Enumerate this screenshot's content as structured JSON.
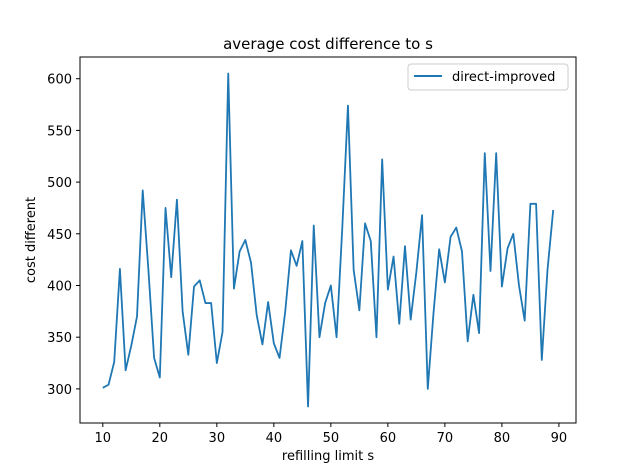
{
  "chart_data": {
    "type": "line",
    "title": "average cost difference to s",
    "xlabel": "refilling limit s",
    "ylabel": "cost different",
    "xlim": [
      6,
      93
    ],
    "ylim": [
      267,
      621
    ],
    "xticks": [
      10,
      20,
      30,
      40,
      50,
      60,
      70,
      80,
      90
    ],
    "yticks": [
      300,
      350,
      400,
      450,
      500,
      550,
      600
    ],
    "grid": false,
    "legend": "top-right",
    "series": [
      {
        "name": "direct-improved",
        "color": "#1f77b4",
        "x": [
          10,
          11,
          12,
          13,
          14,
          15,
          16,
          17,
          18,
          19,
          20,
          21,
          22,
          23,
          24,
          25,
          26,
          27,
          28,
          29,
          30,
          31,
          32,
          33,
          34,
          35,
          36,
          37,
          38,
          39,
          40,
          41,
          42,
          43,
          44,
          45,
          46,
          47,
          48,
          49,
          50,
          51,
          52,
          53,
          54,
          55,
          56,
          57,
          58,
          59,
          60,
          61,
          62,
          63,
          64,
          65,
          66,
          67,
          68,
          69,
          70,
          71,
          72,
          73,
          74,
          75,
          76,
          77,
          78,
          79,
          80,
          81,
          82,
          83,
          84,
          85,
          86,
          87,
          88,
          89
        ],
        "values": [
          301,
          304,
          326,
          416,
          318,
          342,
          370,
          492,
          415,
          330,
          311,
          475,
          408,
          483,
          375,
          333,
          399,
          405,
          383,
          383,
          325,
          355,
          605,
          397,
          433,
          444,
          422,
          371,
          343,
          384,
          344,
          330,
          375,
          434,
          419,
          443,
          283,
          458,
          350,
          383,
          400,
          350,
          455,
          574,
          415,
          376,
          460,
          443,
          350,
          522,
          396,
          428,
          363,
          438,
          367,
          413,
          468,
          300,
          373,
          435,
          403,
          447,
          456,
          433,
          346,
          391,
          354,
          528,
          414,
          528,
          399,
          436,
          450,
          400,
          366,
          479,
          479,
          328,
          415,
          473
        ]
      }
    ]
  }
}
